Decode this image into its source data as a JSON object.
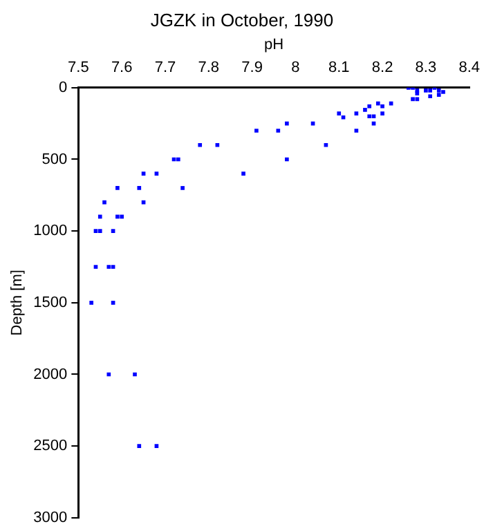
{
  "chart_data": {
    "type": "scatter",
    "title": "JGZK in October, 1990",
    "xlabel": "pH",
    "ylabel": "Depth [m]",
    "marker": "square",
    "grid": false,
    "xlim": [
      7.5,
      8.4
    ],
    "xticks": [
      7.5,
      7.6,
      7.7,
      7.8,
      7.9,
      8,
      8.1,
      8.2,
      8.3,
      8.4
    ],
    "ylim": [
      3000,
      0
    ],
    "yticks": [
      0,
      500,
      1000,
      1500,
      2000,
      2500,
      3000
    ],
    "series": [
      {
        "color": "#0000ff",
        "x": [
          8.26,
          8.27,
          8.28,
          8.28,
          8.27,
          8.28,
          8.3,
          8.31,
          8.31,
          8.32,
          8.33,
          8.33,
          8.34,
          8.22,
          8.2,
          8.19,
          8.2,
          8.17,
          8.16,
          8.17,
          8.18,
          8.18,
          8.14,
          8.14,
          8.1,
          8.11,
          8.04,
          7.98,
          7.96,
          7.91,
          8.07,
          7.98,
          7.88,
          7.82,
          7.78,
          7.72,
          7.73,
          7.68,
          7.65,
          7.74,
          7.65,
          7.64,
          7.59,
          7.56,
          7.55,
          7.59,
          7.6,
          7.54,
          7.55,
          7.58,
          7.54,
          7.57,
          7.58,
          7.53,
          7.58,
          7.57,
          7.63,
          7.64,
          7.68
        ],
        "values": [
          0,
          0,
          20,
          40,
          80,
          80,
          20,
          20,
          60,
          0,
          20,
          50,
          30,
          110,
          130,
          110,
          180,
          130,
          155,
          200,
          200,
          250,
          180,
          300,
          180,
          207,
          250,
          250,
          300,
          300,
          400,
          500,
          600,
          400,
          400,
          500,
          500,
          600,
          600,
          700,
          800,
          700,
          700,
          800,
          900,
          900,
          900,
          1000,
          1000,
          1000,
          1250,
          1250,
          1250,
          1500,
          1500,
          2000,
          2000,
          2500,
          2500
        ]
      }
    ]
  }
}
